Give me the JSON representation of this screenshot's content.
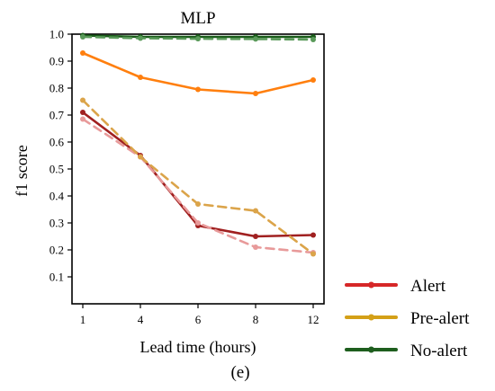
{
  "chart_data": {
    "type": "line",
    "title": "MLP",
    "xlabel": "Lead time (hours)",
    "ylabel": "f1 score",
    "panel_label": "(e)",
    "categories": [
      "1",
      "4",
      "6",
      "8",
      "12"
    ],
    "ylim": [
      0.0,
      1.0
    ],
    "yticks": [
      "0.1",
      "0.2",
      "0.3",
      "0.4",
      "0.5",
      "0.6",
      "0.7",
      "0.8",
      "0.9",
      "1.0"
    ],
    "grid": false,
    "legend_position": "lower-right-outside",
    "legend": [
      {
        "label": "Alert",
        "color": "#d62728"
      },
      {
        "label": "Pre-alert",
        "color": "#d4a017"
      },
      {
        "label": "No-alert",
        "color": "#1e5e1e"
      }
    ],
    "series": [
      {
        "group": "Alert",
        "style": "solid",
        "color": "#a02020",
        "values": [
          0.71,
          0.55,
          0.29,
          0.25,
          0.255
        ]
      },
      {
        "group": "Alert",
        "style": "dashed",
        "color": "#e89a9a",
        "values": [
          0.685,
          0.545,
          0.3,
          0.21,
          0.19
        ]
      },
      {
        "group": "Pre-alert",
        "style": "solid",
        "color": "#ff7f0e",
        "values": [
          0.93,
          0.84,
          0.795,
          0.78,
          0.83
        ]
      },
      {
        "group": "Pre-alert",
        "style": "dashed",
        "color": "#dba44a",
        "values": [
          0.755,
          0.545,
          0.37,
          0.345,
          0.185
        ]
      },
      {
        "group": "No-alert",
        "style": "solid",
        "color": "#1a5c1a",
        "values": [
          0.995,
          0.99,
          0.99,
          0.99,
          0.99
        ]
      },
      {
        "group": "No-alert",
        "style": "dashed",
        "color": "#5a9a5a",
        "values": [
          0.99,
          0.985,
          0.983,
          0.982,
          0.98
        ]
      }
    ]
  }
}
